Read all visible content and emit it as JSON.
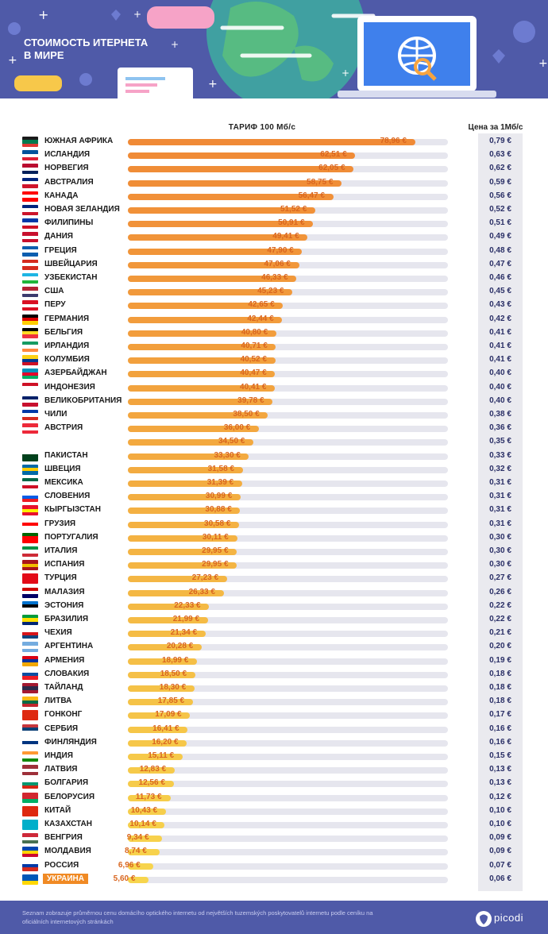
{
  "header": {
    "title": "Стоимость итернета\nв мире"
  },
  "colors": {
    "header_bg": "#4f5aa8",
    "bar_high": "#f08a36",
    "bar_low": "#f7d54d",
    "track": "#e6e6ee",
    "value_text": "#d9651f",
    "price_bg": "#eaeaef",
    "highlight": "#f08a24"
  },
  "footer": {
    "note": "Seznam zobrazuje průměrnou cenu domácího optického internetu od největších tuzemských poskytovatelů internetu podle ceníku na oficiálních internetových stránkách",
    "brand": "picodi"
  },
  "chart_data": {
    "type": "bar",
    "orientation": "horizontal",
    "title": "",
    "value_column_label": "ТАРИФ 100 Мб/с",
    "price_column_label": "Цена за 1Мб/с",
    "unit": "€",
    "xlim": [
      0,
      88
    ],
    "highlighted": "УКРАИНА",
    "categories": [
      "ЮЖНАЯ АФРИКА",
      "ИСЛАНДИЯ",
      "НОРВЕГИЯ",
      "АВСТРАЛИЯ",
      "КАНАДА",
      "НОВАЯ ЗЕЛАНДИЯ",
      "ФИЛИПИНЫ",
      "ДАНИЯ",
      "ГРЕЦИЯ",
      "ШВЕЙЦАРИЯ",
      "УЗБЕКИСТАН",
      "США",
      "ПЕРУ",
      "ГЕРМАНИЯ",
      "БЕЛЬГИЯ",
      "ИРЛАНДИЯ",
      "КОЛУМБИЯ",
      "АЗЕРБАЙДЖАН",
      "ИНДОНЕЗИЯ",
      "ВЕЛИКОБРИТАНИЯ",
      "ЧИЛИ",
      "АВСТРИЯ",
      "",
      "ПАКИСТАН",
      "ШВЕЦИЯ",
      "МЕКСИКА",
      "СЛОВЕНИЯ",
      "КЫРГЫЗСТАН",
      "ГРУЗИЯ",
      "ПОРТУГАЛИЯ",
      "ИТАЛИЯ",
      "ИСПАНИЯ",
      "ТУРЦИЯ",
      "МАЛАЗИЯ",
      "ЭСТОНИЯ",
      "БРАЗИЛИЯ",
      "ЧЕХИЯ",
      "АРГЕНТИНА",
      "АРМЕНИЯ",
      "СЛОВАКИЯ",
      "ТАЙЛАНД",
      "ЛИТВА",
      "ГОНКОНГ",
      "СЕРБИЯ",
      "ФИНЛЯНДИЯ",
      "ИНДИЯ",
      "ЛАТВИЯ",
      "БОЛГАРИЯ",
      "БЕЛОРУСИЯ",
      "КИТАЙ",
      "КАЗАХСТАН",
      "ВЕНГРИЯ",
      "МОЛДАВИЯ",
      "РОССИЯ",
      "УКРАИНА"
    ],
    "values": [
      78.96,
      62.51,
      62.05,
      58.75,
      56.47,
      51.52,
      50.91,
      49.41,
      47.9,
      47.06,
      46.33,
      45.23,
      42.65,
      42.44,
      40.8,
      40.71,
      40.52,
      40.47,
      40.41,
      39.78,
      38.5,
      36.0,
      34.5,
      33.3,
      31.58,
      31.39,
      30.99,
      30.88,
      30.58,
      30.11,
      29.95,
      29.95,
      27.23,
      26.33,
      22.33,
      21.99,
      21.34,
      20.28,
      18.99,
      18.5,
      18.3,
      17.85,
      17.09,
      16.41,
      16.2,
      15.11,
      12.83,
      12.56,
      11.73,
      10.43,
      10.14,
      9.34,
      8.74,
      6.96,
      5.6
    ],
    "value_labels": [
      "78,96 €",
      "62,51 €",
      "62,05 €",
      "58,75 €",
      "56,47 €",
      "51,52 €",
      "50,91 €",
      "49,41 €",
      "47,90 €",
      "47,06 €",
      "46,33 €",
      "45,23 €",
      "42,65 €",
      "42,44 €",
      "40,80 €",
      "40,71 €",
      "40,52 €",
      "40,47 €",
      "40,41 €",
      "39,78 €",
      "38,50 €",
      "36,00 €",
      "34,50 €",
      "33,30 €",
      "31,58 €",
      "31,39 €",
      "30,99 €",
      "30,88 €",
      "30,58 €",
      "30,11 €",
      "29,95 €",
      "29,95 €",
      "27,23 €",
      "26,33 €",
      "22,33 €",
      "21,99 €",
      "21,34 €",
      "20,28 €",
      "18,99 €",
      "18,50 €",
      "18,30 €",
      "17,85 €",
      "17,09 €",
      "16,41 €",
      "16,20 €",
      "15,11 €",
      "12,83 €",
      "12,56 €",
      "11,73 €",
      "10,43 €",
      "10,14 €",
      "9,34 €",
      "8,74 €",
      "6,96 €",
      "5,60 €"
    ],
    "price_labels": [
      "0,79 €",
      "0,63 €",
      "0,62 €",
      "0,59 €",
      "0,56 €",
      "0,52 €",
      "0,51 €",
      "0,49 €",
      "0,48 €",
      "0,47 €",
      "0,46 €",
      "0,45 €",
      "0,43 €",
      "0,42 €",
      "0,41 €",
      "0,41 €",
      "0,41 €",
      "0,40 €",
      "0,40 €",
      "0,40 €",
      "0,38 €",
      "0,36 €",
      "0,35 €",
      "0,33 €",
      "0,32 €",
      "0,31 €",
      "0,31 €",
      "0,31 €",
      "0,31 €",
      "0,30 €",
      "0,30 €",
      "0,30 €",
      "0,27 €",
      "0,26 €",
      "0,22 €",
      "0,22 €",
      "0,21 €",
      "0,20 €",
      "0,19 €",
      "0,18 €",
      "0,18 €",
      "0,18 €",
      "0,17 €",
      "0,16 €",
      "0,16 €",
      "0,15 €",
      "0,13 €",
      "0,13 €",
      "0,12 €",
      "0,10 €",
      "0,10 €",
      "0,09 €",
      "0,09 €",
      "0,07 €",
      "0,06 €"
    ],
    "flags": [
      [
        "#1a1a1a",
        "#007a4d",
        "#de3831"
      ],
      [
        "#02529c",
        "#ffffff",
        "#dc1e35"
      ],
      [
        "#ba0c2f",
        "#ffffff",
        "#00205b"
      ],
      [
        "#00247d",
        "#ffffff",
        "#cf142b"
      ],
      [
        "#ff0000",
        "#ffffff",
        "#ff0000"
      ],
      [
        "#00247d",
        "#ffffff",
        "#cc142b"
      ],
      [
        "#0038a8",
        "#ffffff",
        "#ce1126"
      ],
      [
        "#c8102e",
        "#ffffff",
        "#c8102e"
      ],
      [
        "#0d5eaf",
        "#ffffff",
        "#0d5eaf"
      ],
      [
        "#d52b1e",
        "#ffffff",
        "#d52b1e"
      ],
      [
        "#1eb5e4",
        "#ffffff",
        "#1eb53a"
      ],
      [
        "#b22234",
        "#ffffff",
        "#3c3b6e"
      ],
      [
        "#d91023",
        "#ffffff",
        "#d91023"
      ],
      [
        "#000000",
        "#dd0000",
        "#ffce00"
      ],
      [
        "#000000",
        "#fdda24",
        "#ef3340"
      ],
      [
        "#169b62",
        "#ffffff",
        "#ff883e"
      ],
      [
        "#fcd116",
        "#003893",
        "#ce1126"
      ],
      [
        "#0092bc",
        "#e4002b",
        "#00af66"
      ],
      [
        "#ce1126",
        "#ffffff",
        "#ffffff"
      ],
      [
        "#012169",
        "#ffffff",
        "#c8102e"
      ],
      [
        "#0039a6",
        "#ffffff",
        "#d52b1e"
      ],
      [
        "#ed2939",
        "#ffffff",
        "#ed2939"
      ],
      [
        "#ffffff",
        "#ffffff",
        "#ffffff"
      ],
      [
        "#ffffff",
        "#01411c",
        "#01411c"
      ],
      [
        "#006aa7",
        "#fecc00",
        "#006aa7"
      ],
      [
        "#006847",
        "#ffffff",
        "#ce1126"
      ],
      [
        "#ffffff",
        "#005ce6",
        "#ed1c24"
      ],
      [
        "#e8112d",
        "#ffef00",
        "#e8112d"
      ],
      [
        "#ffffff",
        "#ff0000",
        "#ffffff"
      ],
      [
        "#006600",
        "#ff0000",
        "#ff0000"
      ],
      [
        "#009246",
        "#ffffff",
        "#ce2b37"
      ],
      [
        "#aa151b",
        "#f1bf00",
        "#aa151b"
      ],
      [
        "#e30a17",
        "#e30a17",
        "#e30a17"
      ],
      [
        "#cc0001",
        "#ffffff",
        "#010066"
      ],
      [
        "#0072ce",
        "#000000",
        "#ffffff"
      ],
      [
        "#009c3b",
        "#ffdf00",
        "#002776"
      ],
      [
        "#ffffff",
        "#d7141a",
        "#11457e"
      ],
      [
        "#74acdf",
        "#ffffff",
        "#74acdf"
      ],
      [
        "#d90012",
        "#0033a0",
        "#f2a800"
      ],
      [
        "#ffffff",
        "#0b4ea2",
        "#ee1c25"
      ],
      [
        "#a51931",
        "#2d2a4a",
        "#a51931"
      ],
      [
        "#fdb913",
        "#006a44",
        "#c1272d"
      ],
      [
        "#de2910",
        "#de2910",
        "#de2910"
      ],
      [
        "#c6363c",
        "#0c4076",
        "#ffffff"
      ],
      [
        "#ffffff",
        "#003580",
        "#ffffff"
      ],
      [
        "#ff9933",
        "#ffffff",
        "#138808"
      ],
      [
        "#9e3039",
        "#ffffff",
        "#9e3039"
      ],
      [
        "#ffffff",
        "#00966e",
        "#d62612"
      ],
      [
        "#d22730",
        "#d22730",
        "#00af66"
      ],
      [
        "#de2910",
        "#de2910",
        "#de2910"
      ],
      [
        "#00afca",
        "#00afca",
        "#00afca"
      ],
      [
        "#ce2939",
        "#ffffff",
        "#477050"
      ],
      [
        "#0046ae",
        "#ffd200",
        "#cc092f"
      ],
      [
        "#ffffff",
        "#0039a6",
        "#d52b1e"
      ],
      [
        "#0057b7",
        "#0057b7",
        "#ffd700"
      ]
    ]
  }
}
